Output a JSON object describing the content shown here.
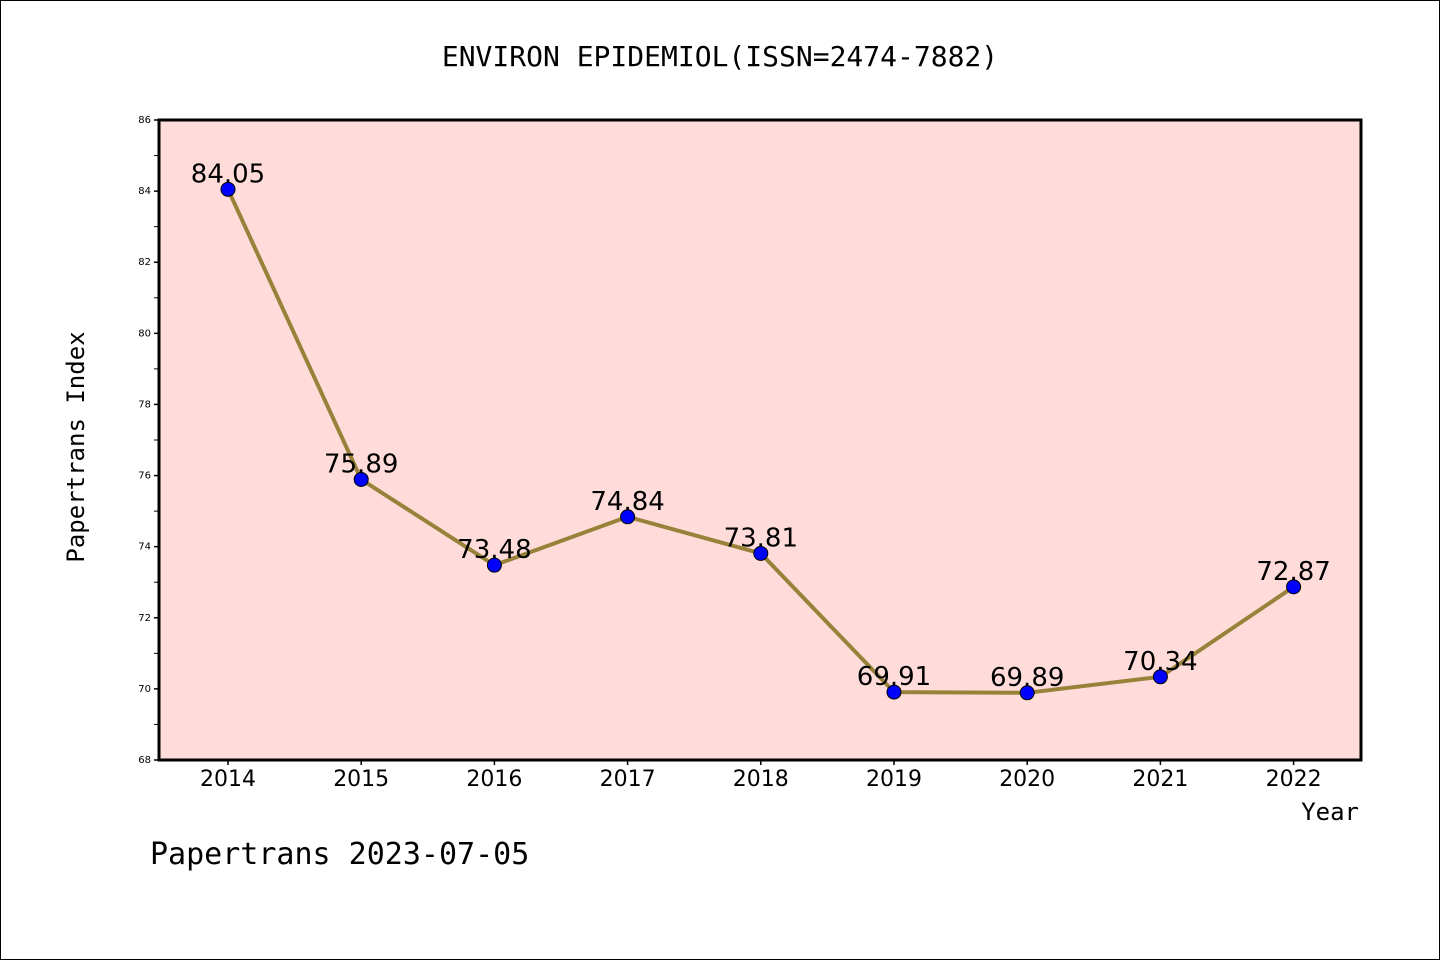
{
  "chart_data": {
    "type": "line",
    "title": "ENVIRON EPIDEMIOL(ISSN=2474-7882)",
    "xlabel": "Year",
    "ylabel": "Papertrans Index",
    "footer": "Papertrans 2023-07-05",
    "categories": [
      "2014",
      "2015",
      "2016",
      "2017",
      "2018",
      "2019",
      "2020",
      "2021",
      "2022"
    ],
    "series": [
      {
        "values": [
          84.05,
          75.89,
          73.48,
          74.84,
          73.81,
          69.91,
          69.89,
          70.34,
          72.87
        ],
        "labels": [
          "84.05",
          "75.89",
          "73.48",
          "74.84",
          "73.81",
          "69.91",
          "69.89",
          "70.34",
          "72.87"
        ]
      }
    ],
    "ylim": [
      68,
      86
    ],
    "yticks": [
      "68",
      "70",
      "72",
      "74",
      "76",
      "78",
      "80",
      "82",
      "84",
      "86"
    ],
    "grid": false,
    "colors": {
      "plot_background": "#FFDCDA",
      "line": "#98823A",
      "marker": "#0000FF"
    }
  }
}
